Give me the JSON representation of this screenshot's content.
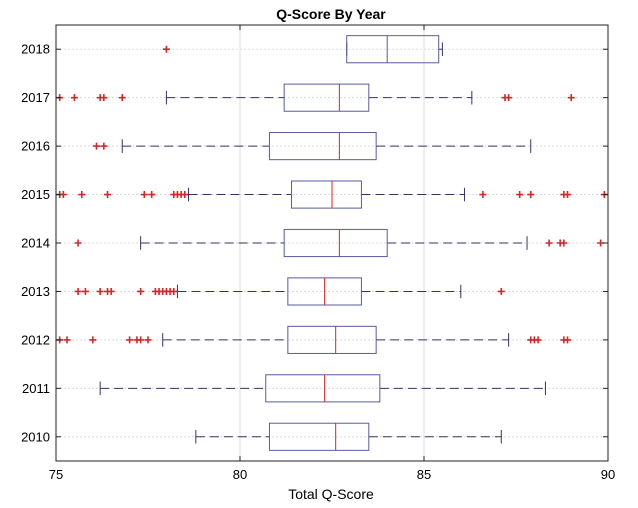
{
  "chart_data": {
    "type": "boxplot",
    "orientation": "horizontal",
    "title": "Q-Score By Year",
    "xlabel": "Total Q-Score",
    "ylabel": "",
    "xlim": [
      75,
      90
    ],
    "x_ticks": [
      75,
      80,
      85,
      90
    ],
    "grid": true,
    "colors": {
      "box": "#5a5aa0",
      "median": "#e02020",
      "outlier": "#d62728",
      "whisker": "#333366"
    },
    "categories": [
      "2010",
      "2011",
      "2012",
      "2013",
      "2014",
      "2015",
      "2016",
      "2017",
      "2018"
    ],
    "boxes": [
      {
        "label": "2010",
        "whisker_low": 78.8,
        "q1": 80.8,
        "median": 82.6,
        "q3": 83.5,
        "whisker_high": 87.1,
        "outliers": []
      },
      {
        "label": "2011",
        "whisker_low": 76.2,
        "q1": 80.7,
        "median": 82.3,
        "q3": 83.8,
        "whisker_high": 88.3,
        "outliers": []
      },
      {
        "label": "2012",
        "whisker_low": 77.9,
        "q1": 81.3,
        "median": 82.6,
        "q3": 83.7,
        "whisker_high": 87.3,
        "outliers": [
          75.1,
          75.3,
          76.0,
          77.0,
          77.2,
          77.3,
          77.5,
          87.9,
          88.0,
          88.1,
          88.8,
          88.9
        ]
      },
      {
        "label": "2013",
        "whisker_low": 78.3,
        "q1": 81.3,
        "median": 82.3,
        "q3": 83.3,
        "whisker_high": 86.0,
        "outliers": [
          75.6,
          75.8,
          76.2,
          76.4,
          76.5,
          77.3,
          77.7,
          77.8,
          77.9,
          78.0,
          78.1,
          78.2,
          87.1
        ]
      },
      {
        "label": "2014",
        "whisker_low": 77.3,
        "q1": 81.2,
        "median": 82.7,
        "q3": 84.0,
        "whisker_high": 87.8,
        "outliers": [
          75.6,
          88.4,
          88.7,
          88.8,
          89.8
        ]
      },
      {
        "label": "2015",
        "whisker_low": 78.6,
        "q1": 81.4,
        "median": 82.5,
        "q3": 83.3,
        "whisker_high": 86.1,
        "outliers": [
          75.1,
          75.2,
          75.7,
          76.4,
          77.4,
          77.6,
          78.2,
          78.3,
          78.4,
          78.5,
          86.6,
          87.6,
          87.9,
          88.8,
          88.9,
          89.9
        ]
      },
      {
        "label": "2016",
        "whisker_low": 76.8,
        "q1": 80.8,
        "median": 82.7,
        "q3": 83.7,
        "whisker_high": 87.9,
        "outliers": [
          76.1,
          76.3
        ]
      },
      {
        "label": "2017",
        "whisker_low": 78.0,
        "q1": 81.2,
        "median": 82.7,
        "q3": 83.5,
        "whisker_high": 86.3,
        "outliers": [
          75.1,
          75.5,
          76.2,
          76.3,
          76.8,
          87.2,
          87.3,
          89.0
        ]
      },
      {
        "label": "2018",
        "whisker_low": 82.9,
        "q1": 82.9,
        "median": 84.0,
        "q3": 85.4,
        "whisker_high": 85.5,
        "outliers": [
          78.0
        ]
      }
    ]
  }
}
